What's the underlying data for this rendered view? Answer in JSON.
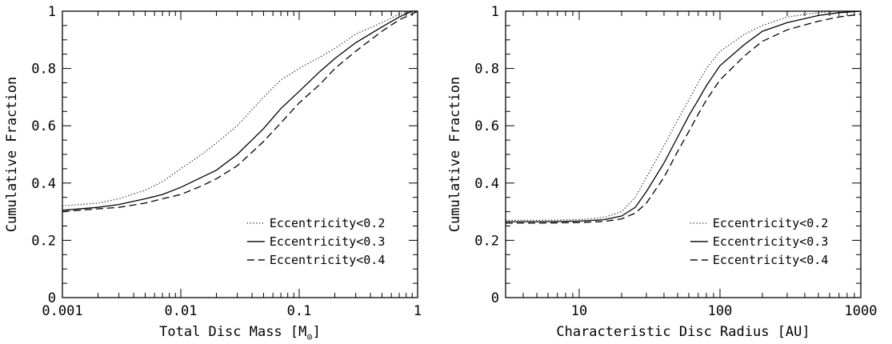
{
  "chart_data": [
    {
      "type": "line",
      "xlabel": "Total Disc Mass [M",
      "xlabel_sub": "⊙",
      "xlabel_close": "]",
      "ylabel": "Cumulative Fraction",
      "xscale": "log",
      "xlim": [
        0.001,
        1
      ],
      "ylim": [
        0,
        1
      ],
      "x_ticks": [
        0.001,
        0.01,
        0.1,
        1
      ],
      "x_tick_labels": [
        "0.001",
        "0.01",
        "0.1",
        "1"
      ],
      "y_ticks": [
        0,
        0.2,
        0.4,
        0.6,
        0.8,
        1
      ],
      "y_tick_labels": [
        "0",
        "0.2",
        "0.4",
        "0.6",
        "0.8",
        "1"
      ],
      "legend_position": "bottom-right",
      "series": [
        {
          "name": "Eccentricity<0.2",
          "style": "dotted",
          "x": [
            0.001,
            0.002,
            0.003,
            0.005,
            0.007,
            0.01,
            0.015,
            0.02,
            0.03,
            0.05,
            0.07,
            0.1,
            0.15,
            0.2,
            0.3,
            0.5,
            0.7,
            0.9,
            1
          ],
          "y": [
            0.32,
            0.33,
            0.345,
            0.375,
            0.405,
            0.45,
            0.5,
            0.54,
            0.6,
            0.7,
            0.76,
            0.8,
            0.84,
            0.87,
            0.92,
            0.96,
            0.99,
            1.0,
            1.0
          ]
        },
        {
          "name": "Eccentricity<0.3",
          "style": "solid",
          "x": [
            0.001,
            0.002,
            0.003,
            0.005,
            0.007,
            0.01,
            0.015,
            0.02,
            0.03,
            0.05,
            0.07,
            0.1,
            0.15,
            0.2,
            0.3,
            0.5,
            0.7,
            0.9,
            1
          ],
          "y": [
            0.305,
            0.315,
            0.325,
            0.345,
            0.36,
            0.385,
            0.42,
            0.445,
            0.5,
            0.59,
            0.66,
            0.72,
            0.79,
            0.835,
            0.89,
            0.945,
            0.98,
            1.0,
            1.0
          ]
        },
        {
          "name": "Eccentricity<0.4",
          "style": "dashed",
          "x": [
            0.001,
            0.002,
            0.003,
            0.005,
            0.007,
            0.01,
            0.015,
            0.02,
            0.03,
            0.05,
            0.07,
            0.1,
            0.15,
            0.2,
            0.3,
            0.5,
            0.7,
            0.9,
            1
          ],
          "y": [
            0.3,
            0.31,
            0.315,
            0.33,
            0.345,
            0.36,
            0.39,
            0.415,
            0.46,
            0.545,
            0.61,
            0.68,
            0.745,
            0.8,
            0.86,
            0.93,
            0.97,
            0.99,
            1.0
          ]
        }
      ]
    },
    {
      "type": "line",
      "xlabel": "Characteristic Disc Radius [AU]",
      "ylabel": "Cumulative Fraction",
      "xscale": "log",
      "xlim": [
        3,
        1000
      ],
      "ylim": [
        0,
        1
      ],
      "x_ticks": [
        10,
        100,
        1000
      ],
      "x_tick_labels": [
        "10",
        "100",
        "1000"
      ],
      "y_ticks": [
        0,
        0.2,
        0.4,
        0.6,
        0.8,
        1
      ],
      "y_tick_labels": [
        "0",
        "0.2",
        "0.4",
        "0.6",
        "0.8",
        "1"
      ],
      "legend_position": "bottom-right",
      "series": [
        {
          "name": "Eccentricity<0.2",
          "style": "dotted",
          "x": [
            3,
            5,
            10,
            15,
            20,
            25,
            30,
            40,
            50,
            60,
            70,
            80,
            100,
            150,
            200,
            300,
            500,
            700,
            1000
          ],
          "y": [
            0.27,
            0.27,
            0.272,
            0.28,
            0.3,
            0.35,
            0.42,
            0.53,
            0.62,
            0.69,
            0.75,
            0.8,
            0.86,
            0.92,
            0.95,
            0.98,
            0.995,
            1.0,
            1.0
          ]
        },
        {
          "name": "Eccentricity<0.3",
          "style": "solid",
          "x": [
            3,
            5,
            10,
            15,
            20,
            25,
            30,
            40,
            50,
            60,
            70,
            80,
            100,
            150,
            200,
            300,
            500,
            700,
            1000
          ],
          "y": [
            0.265,
            0.265,
            0.267,
            0.272,
            0.285,
            0.315,
            0.37,
            0.47,
            0.56,
            0.635,
            0.69,
            0.74,
            0.81,
            0.885,
            0.93,
            0.96,
            0.985,
            0.995,
            1.0
          ]
        },
        {
          "name": "Eccentricity<0.4",
          "style": "dashed",
          "x": [
            3,
            5,
            10,
            15,
            20,
            25,
            30,
            40,
            50,
            60,
            70,
            80,
            100,
            150,
            200,
            300,
            500,
            700,
            1000
          ],
          "y": [
            0.26,
            0.26,
            0.262,
            0.266,
            0.275,
            0.295,
            0.33,
            0.42,
            0.51,
            0.58,
            0.64,
            0.69,
            0.76,
            0.845,
            0.895,
            0.935,
            0.965,
            0.98,
            0.99
          ]
        }
      ]
    }
  ]
}
